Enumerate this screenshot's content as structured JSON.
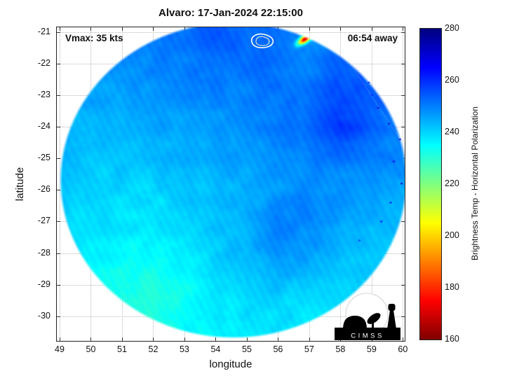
{
  "title": "Alvaro: 17-Jan-2024 22:15:00",
  "annotations": {
    "vmax": "Vmax: 35 kts",
    "eta": "06:54 away"
  },
  "axes": {
    "xlabel": "longitude",
    "ylabel": "latitude",
    "x_ticks": [
      49,
      50,
      51,
      52,
      53,
      54,
      55,
      56,
      57,
      58,
      59,
      60
    ],
    "y_ticks": [
      -21,
      -22,
      -23,
      -24,
      -25,
      -26,
      -27,
      -28,
      -29,
      -30
    ],
    "xlim": [
      48.91,
      60.06
    ],
    "ylim": [
      -30.78,
      -20.85
    ]
  },
  "colorbar": {
    "label": "Brightness Temp - Horizontal Polarization",
    "ticks": [
      160,
      180,
      200,
      220,
      240,
      260,
      280
    ],
    "range": [
      160,
      280
    ],
    "stops": [
      {
        "value": 280,
        "color": "#000080"
      },
      {
        "value": 265,
        "color": "#0000ff"
      },
      {
        "value": 235,
        "color": "#00ffff"
      },
      {
        "value": 205,
        "color": "#ffff00"
      },
      {
        "value": 175,
        "color": "#ff0000"
      },
      {
        "value": 160,
        "color": "#800000"
      }
    ]
  },
  "logo": {
    "text": "CIMSS"
  },
  "chart_data": {
    "type": "heatmap",
    "title": "Alvaro: 17-Jan-2024 22:15:00",
    "xlabel": "longitude",
    "ylabel": "latitude",
    "xlim": [
      48.91,
      60.06
    ],
    "ylim": [
      -30.78,
      -20.85
    ],
    "value_name": "Brightness Temp - Horizontal Polarization",
    "value_units": "K",
    "value_range": [
      160,
      280
    ],
    "colormap": "reversed jet (280 K = dark blue, 160 K = dark red)",
    "swath": {
      "shape": "circular microwave scan footprint",
      "center_lon": 54.57,
      "center_lat": -25.69,
      "radius_lon_deg": 5.5,
      "radius_lat_deg": 4.95,
      "description": "Mostly cyan-to-blue ocean scene (~233-262 K) with mottled texture; darker blue (255-261 K) along the northern and eastern portions, pale green-cyan patches (~233-237 K) in the southwest"
    },
    "grid_lons": [
      49,
      50,
      51,
      52,
      53,
      54,
      55,
      56,
      57,
      58,
      59,
      60
    ],
    "grid_lats": [
      -21,
      -22,
      -23,
      -24,
      -25,
      -26,
      -27,
      -28,
      -29,
      -30
    ],
    "brightness_temp_K": [
      [
        null,
        null,
        null,
        253,
        255,
        257,
        256,
        254,
        251,
        null,
        null,
        null
      ],
      [
        null,
        null,
        250,
        252,
        253,
        255,
        255,
        254,
        253,
        256,
        null,
        null
      ],
      [
        null,
        248,
        249,
        250,
        251,
        252,
        252,
        253,
        255,
        258,
        256,
        null
      ],
      [
        247,
        246,
        247,
        248,
        248,
        249,
        250,
        252,
        255,
        261,
        256,
        252
      ],
      [
        245,
        245,
        244,
        245,
        246,
        247,
        248,
        250,
        252,
        254,
        252,
        251
      ],
      [
        244,
        243,
        242,
        242,
        244,
        245,
        247,
        249,
        251,
        250,
        249,
        248
      ],
      [
        243,
        241,
        240,
        241,
        242,
        245,
        248,
        252,
        252,
        249,
        246,
        null
      ],
      [
        null,
        239,
        237,
        238,
        240,
        243,
        246,
        251,
        249,
        246,
        244,
        null
      ],
      [
        null,
        237,
        234,
        233,
        237,
        240,
        243,
        245,
        243,
        242,
        null,
        null
      ],
      [
        null,
        null,
        236,
        234,
        237,
        239,
        241,
        242,
        240,
        null,
        null,
        null
      ]
    ],
    "features": [
      {
        "name": "convective-cell",
        "lon": 56.87,
        "lat": -21.22,
        "min_temp_K": 178,
        "note": "tiny rainbow-colored (red/orange/yellow) deep-convection cluster at the northern swath edge"
      },
      {
        "name": "storm-center-contour",
        "lon": 55.5,
        "lat": -21.12,
        "note": "small white closed contour ring marking the storm center"
      }
    ],
    "rim_speckles": [
      [
        59.2,
        -23.4,
        268
      ],
      [
        59.55,
        -23.9,
        272
      ],
      [
        59.0,
        -23.0,
        262
      ],
      [
        59.9,
        -24.4,
        270
      ],
      [
        59.7,
        -25.1,
        266
      ],
      [
        59.95,
        -25.8,
        272
      ],
      [
        59.6,
        -26.4,
        264
      ],
      [
        58.9,
        -22.6,
        258
      ],
      [
        59.3,
        -27.0,
        262
      ],
      [
        58.6,
        -27.6,
        258
      ]
    ]
  }
}
